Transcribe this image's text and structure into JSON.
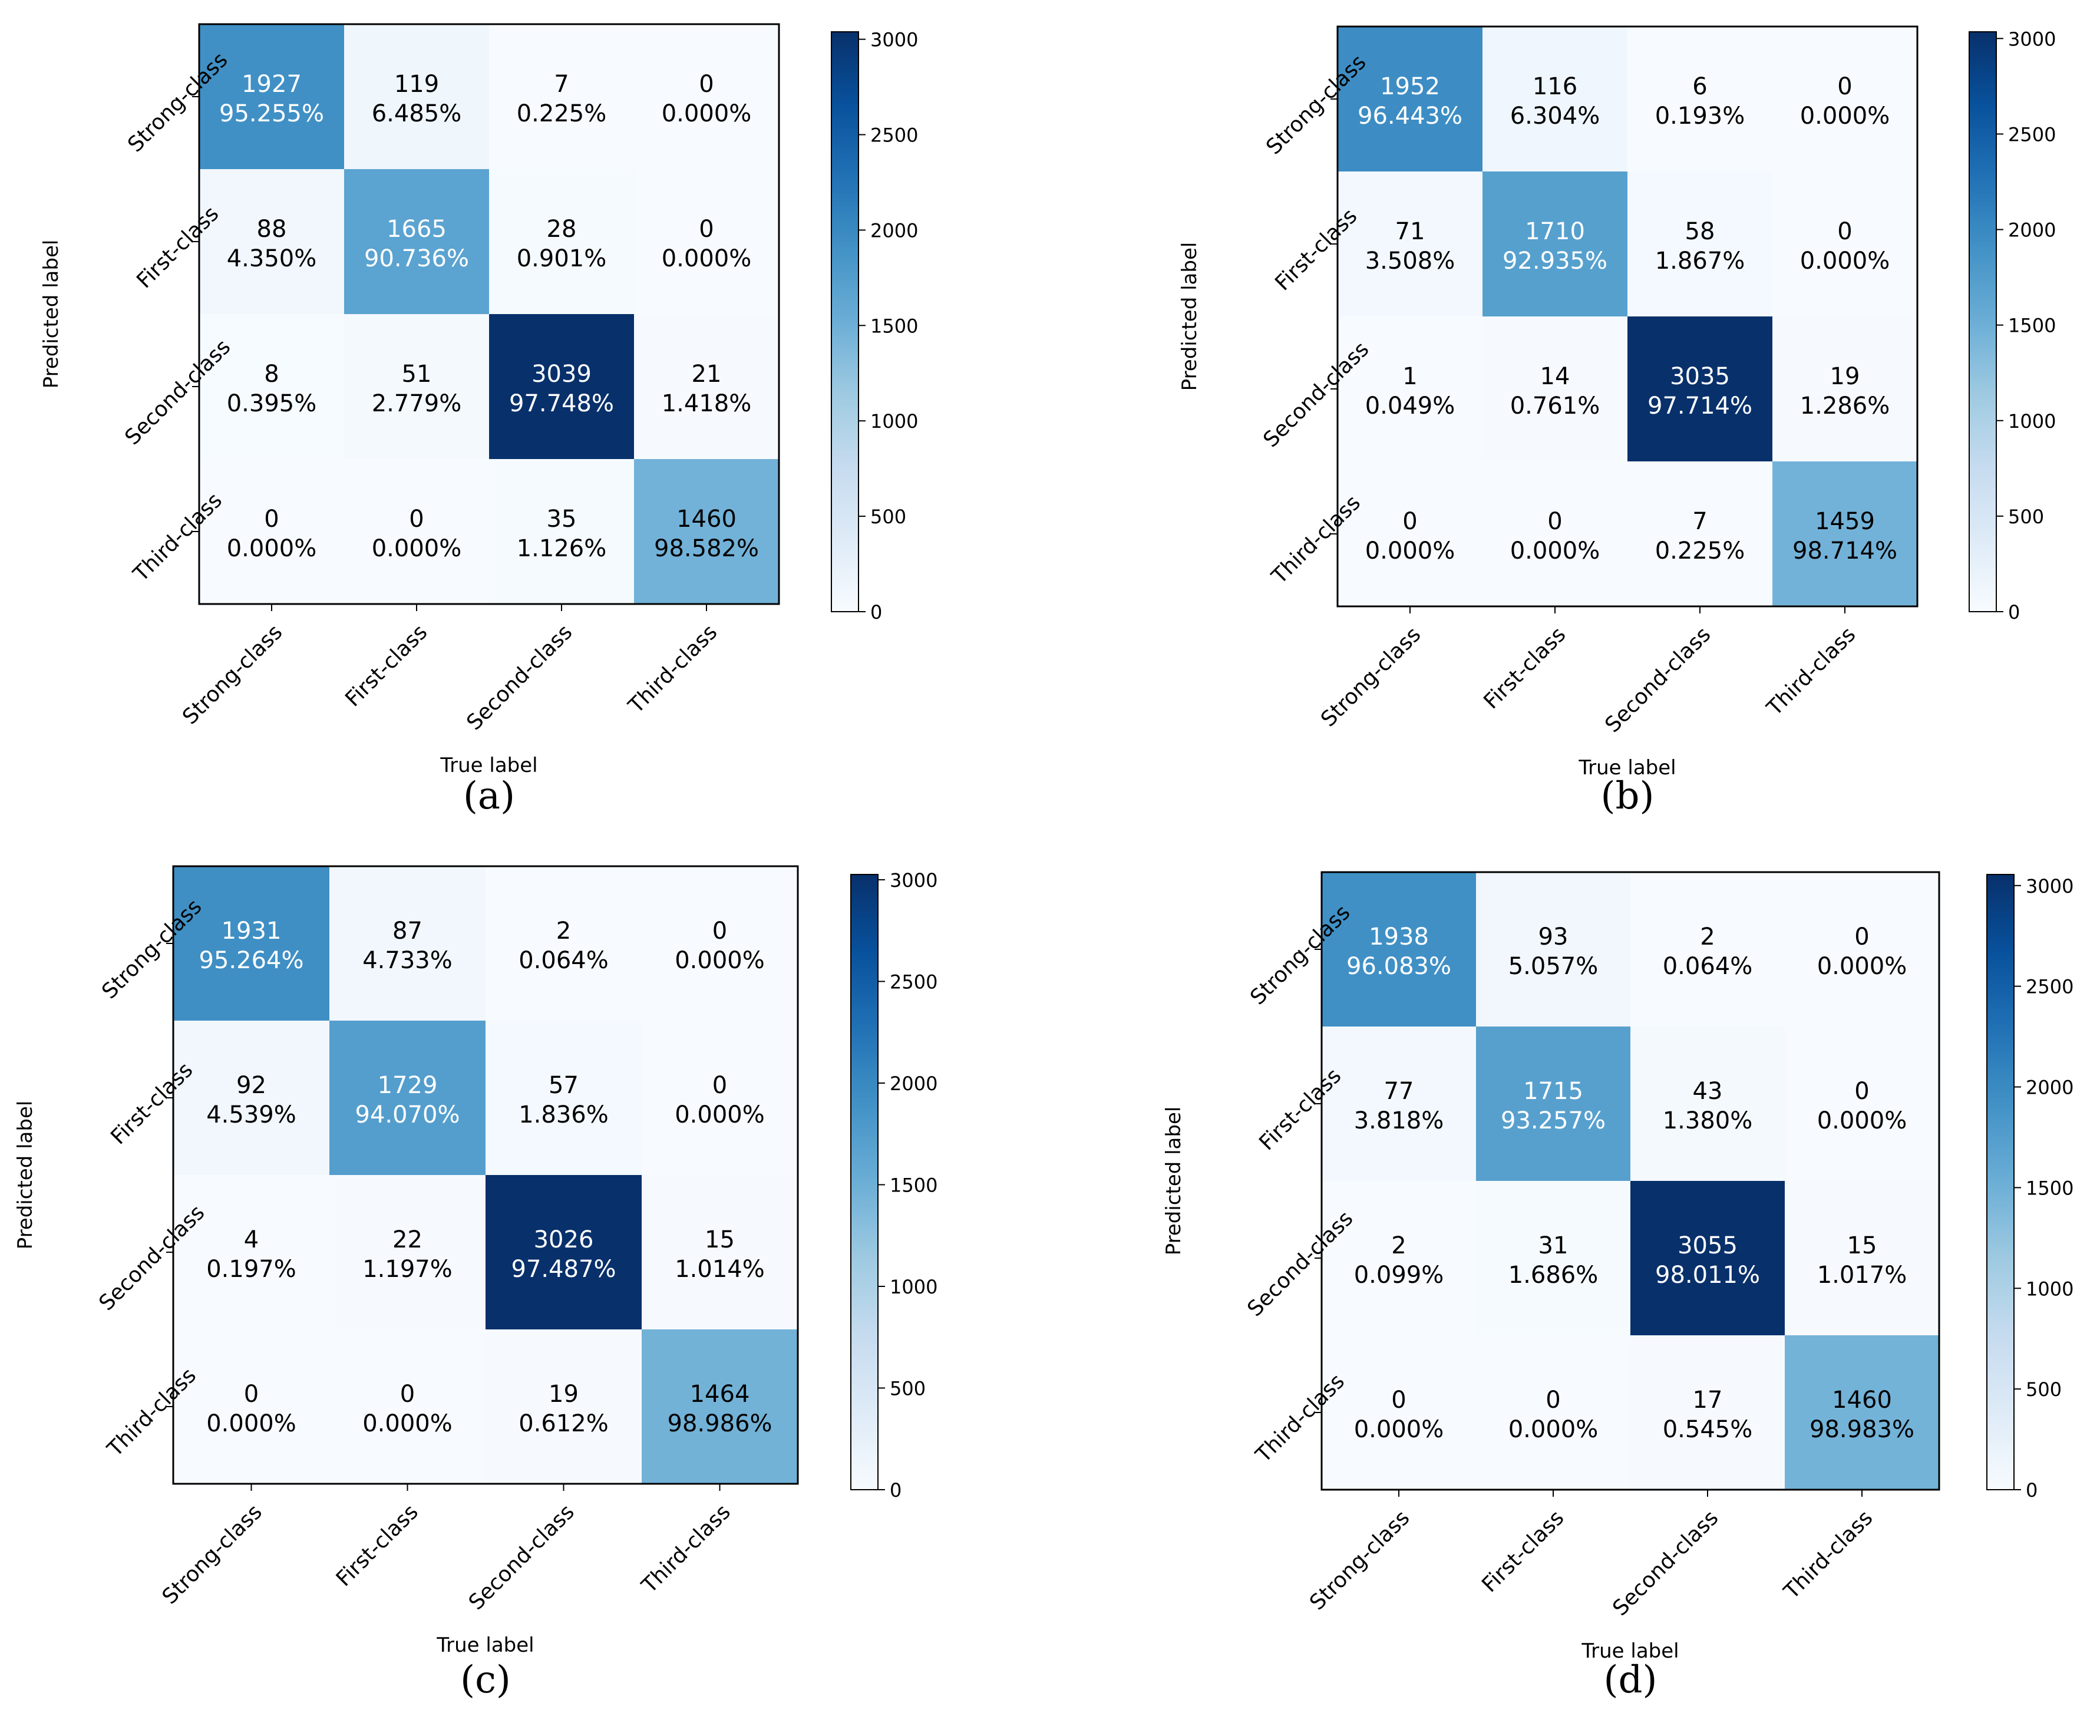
{
  "figure": {
    "panel_captions": [
      "(a)",
      "(b)",
      "(c)",
      "(d)"
    ]
  },
  "chart_data": [
    {
      "type": "heatmap",
      "caption": "(a)",
      "xlabel": "True label",
      "ylabel": "Predicted label",
      "x_categories": [
        "Strong-class",
        "First-class",
        "Second-class",
        "Third-class"
      ],
      "y_categories": [
        "Strong-class",
        "First-class",
        "Second-class",
        "Third-class"
      ],
      "values": [
        [
          1927,
          119,
          7,
          0
        ],
        [
          88,
          1665,
          28,
          0
        ],
        [
          8,
          51,
          3039,
          21
        ],
        [
          0,
          0,
          35,
          1460
        ]
      ],
      "percentages": [
        [
          "95.255%",
          "6.485%",
          "0.225%",
          "0.000%"
        ],
        [
          "4.350%",
          "90.736%",
          "0.901%",
          "0.000%"
        ],
        [
          "0.395%",
          "2.779%",
          "97.748%",
          "1.418%"
        ],
        [
          "0.000%",
          "0.000%",
          "1.126%",
          "98.582%"
        ]
      ],
      "colorbar": {
        "min": 0,
        "max": 3039,
        "ticks": [
          0,
          500,
          1000,
          1500,
          2000,
          2500,
          3000
        ],
        "cmap": "Blues"
      }
    },
    {
      "type": "heatmap",
      "caption": "(b)",
      "xlabel": "True label",
      "ylabel": "Predicted label",
      "x_categories": [
        "Strong-class",
        "First-class",
        "Second-class",
        "Third-class"
      ],
      "y_categories": [
        "Strong-class",
        "First-class",
        "Second-class",
        "Third-class"
      ],
      "values": [
        [
          1952,
          116,
          6,
          0
        ],
        [
          71,
          1710,
          58,
          0
        ],
        [
          1,
          14,
          3035,
          19
        ],
        [
          0,
          0,
          7,
          1459
        ]
      ],
      "percentages": [
        [
          "96.443%",
          "6.304%",
          "0.193%",
          "0.000%"
        ],
        [
          "3.508%",
          "92.935%",
          "1.867%",
          "0.000%"
        ],
        [
          "0.049%",
          "0.761%",
          "97.714%",
          "1.286%"
        ],
        [
          "0.000%",
          "0.000%",
          "0.225%",
          "98.714%"
        ]
      ],
      "colorbar": {
        "min": 0,
        "max": 3035,
        "ticks": [
          0,
          500,
          1000,
          1500,
          2000,
          2500,
          3000
        ],
        "cmap": "Blues"
      }
    },
    {
      "type": "heatmap",
      "caption": "(c)",
      "xlabel": "True label",
      "ylabel": "Predicted label",
      "x_categories": [
        "Strong-class",
        "First-class",
        "Second-class",
        "Third-class"
      ],
      "y_categories": [
        "Strong-class",
        "First-class",
        "Second-class",
        "Third-class"
      ],
      "values": [
        [
          1931,
          87,
          2,
          0
        ],
        [
          92,
          1729,
          57,
          0
        ],
        [
          4,
          22,
          3026,
          15
        ],
        [
          0,
          0,
          19,
          1464
        ]
      ],
      "percentages": [
        [
          "95.264%",
          "4.733%",
          "0.064%",
          "0.000%"
        ],
        [
          "4.539%",
          "94.070%",
          "1.836%",
          "0.000%"
        ],
        [
          "0.197%",
          "1.197%",
          "97.487%",
          "1.014%"
        ],
        [
          "0.000%",
          "0.000%",
          "0.612%",
          "98.986%"
        ]
      ],
      "colorbar": {
        "min": 0,
        "max": 3026,
        "ticks": [
          0,
          500,
          1000,
          1500,
          2000,
          2500,
          3000
        ],
        "cmap": "Blues"
      }
    },
    {
      "type": "heatmap",
      "caption": "(d)",
      "xlabel": "True label",
      "ylabel": "Predicted label",
      "x_categories": [
        "Strong-class",
        "First-class",
        "Second-class",
        "Third-class"
      ],
      "y_categories": [
        "Strong-class",
        "First-class",
        "Second-class",
        "Third-class"
      ],
      "values": [
        [
          1938,
          93,
          2,
          0
        ],
        [
          77,
          1715,
          43,
          0
        ],
        [
          2,
          31,
          3055,
          15
        ],
        [
          0,
          0,
          17,
          1460
        ]
      ],
      "percentages": [
        [
          "96.083%",
          "5.057%",
          "0.064%",
          "0.000%"
        ],
        [
          "3.818%",
          "93.257%",
          "1.380%",
          "0.000%"
        ],
        [
          "0.099%",
          "1.686%",
          "98.011%",
          "1.017%"
        ],
        [
          "0.000%",
          "0.000%",
          "0.545%",
          "98.983%"
        ]
      ],
      "colorbar": {
        "min": 0,
        "max": 3055,
        "ticks": [
          0,
          500,
          1000,
          1500,
          2000,
          2500,
          3000
        ],
        "cmap": "Blues"
      }
    }
  ]
}
